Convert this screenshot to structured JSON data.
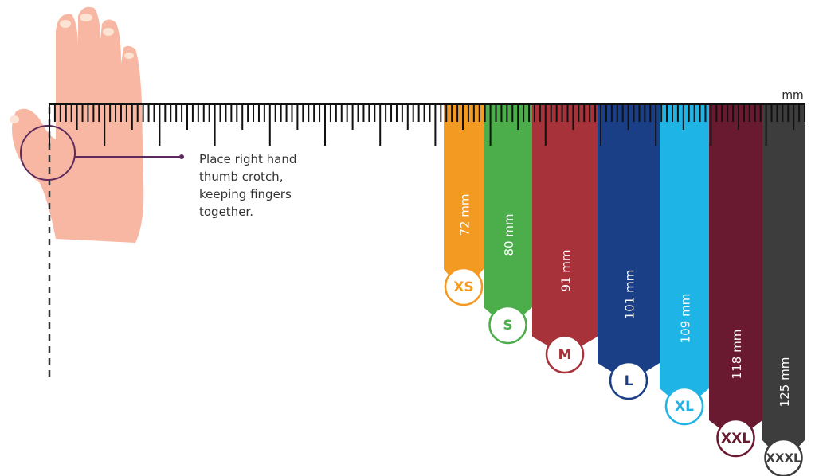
{
  "unit": "mm",
  "instruction": [
    "Place right hand",
    "thumb crotch,",
    "keeping fingers",
    "together."
  ],
  "sizes": [
    {
      "label": "XS",
      "measure": "72 mm",
      "color": "#f39a23"
    },
    {
      "label": "S",
      "measure": "80 mm",
      "color": "#4bae4a"
    },
    {
      "label": "M",
      "measure": "91 mm",
      "color": "#a8323a"
    },
    {
      "label": "L",
      "measure": "101 mm",
      "color": "#1b3f86"
    },
    {
      "label": "XL",
      "measure": "109 mm",
      "color": "#1fb4e6"
    },
    {
      "label": "XXL",
      "measure": "118 mm",
      "color": "#6a1a30"
    },
    {
      "label": "XXXL",
      "measure": "125 mm",
      "color": "#3d3d3d"
    }
  ]
}
